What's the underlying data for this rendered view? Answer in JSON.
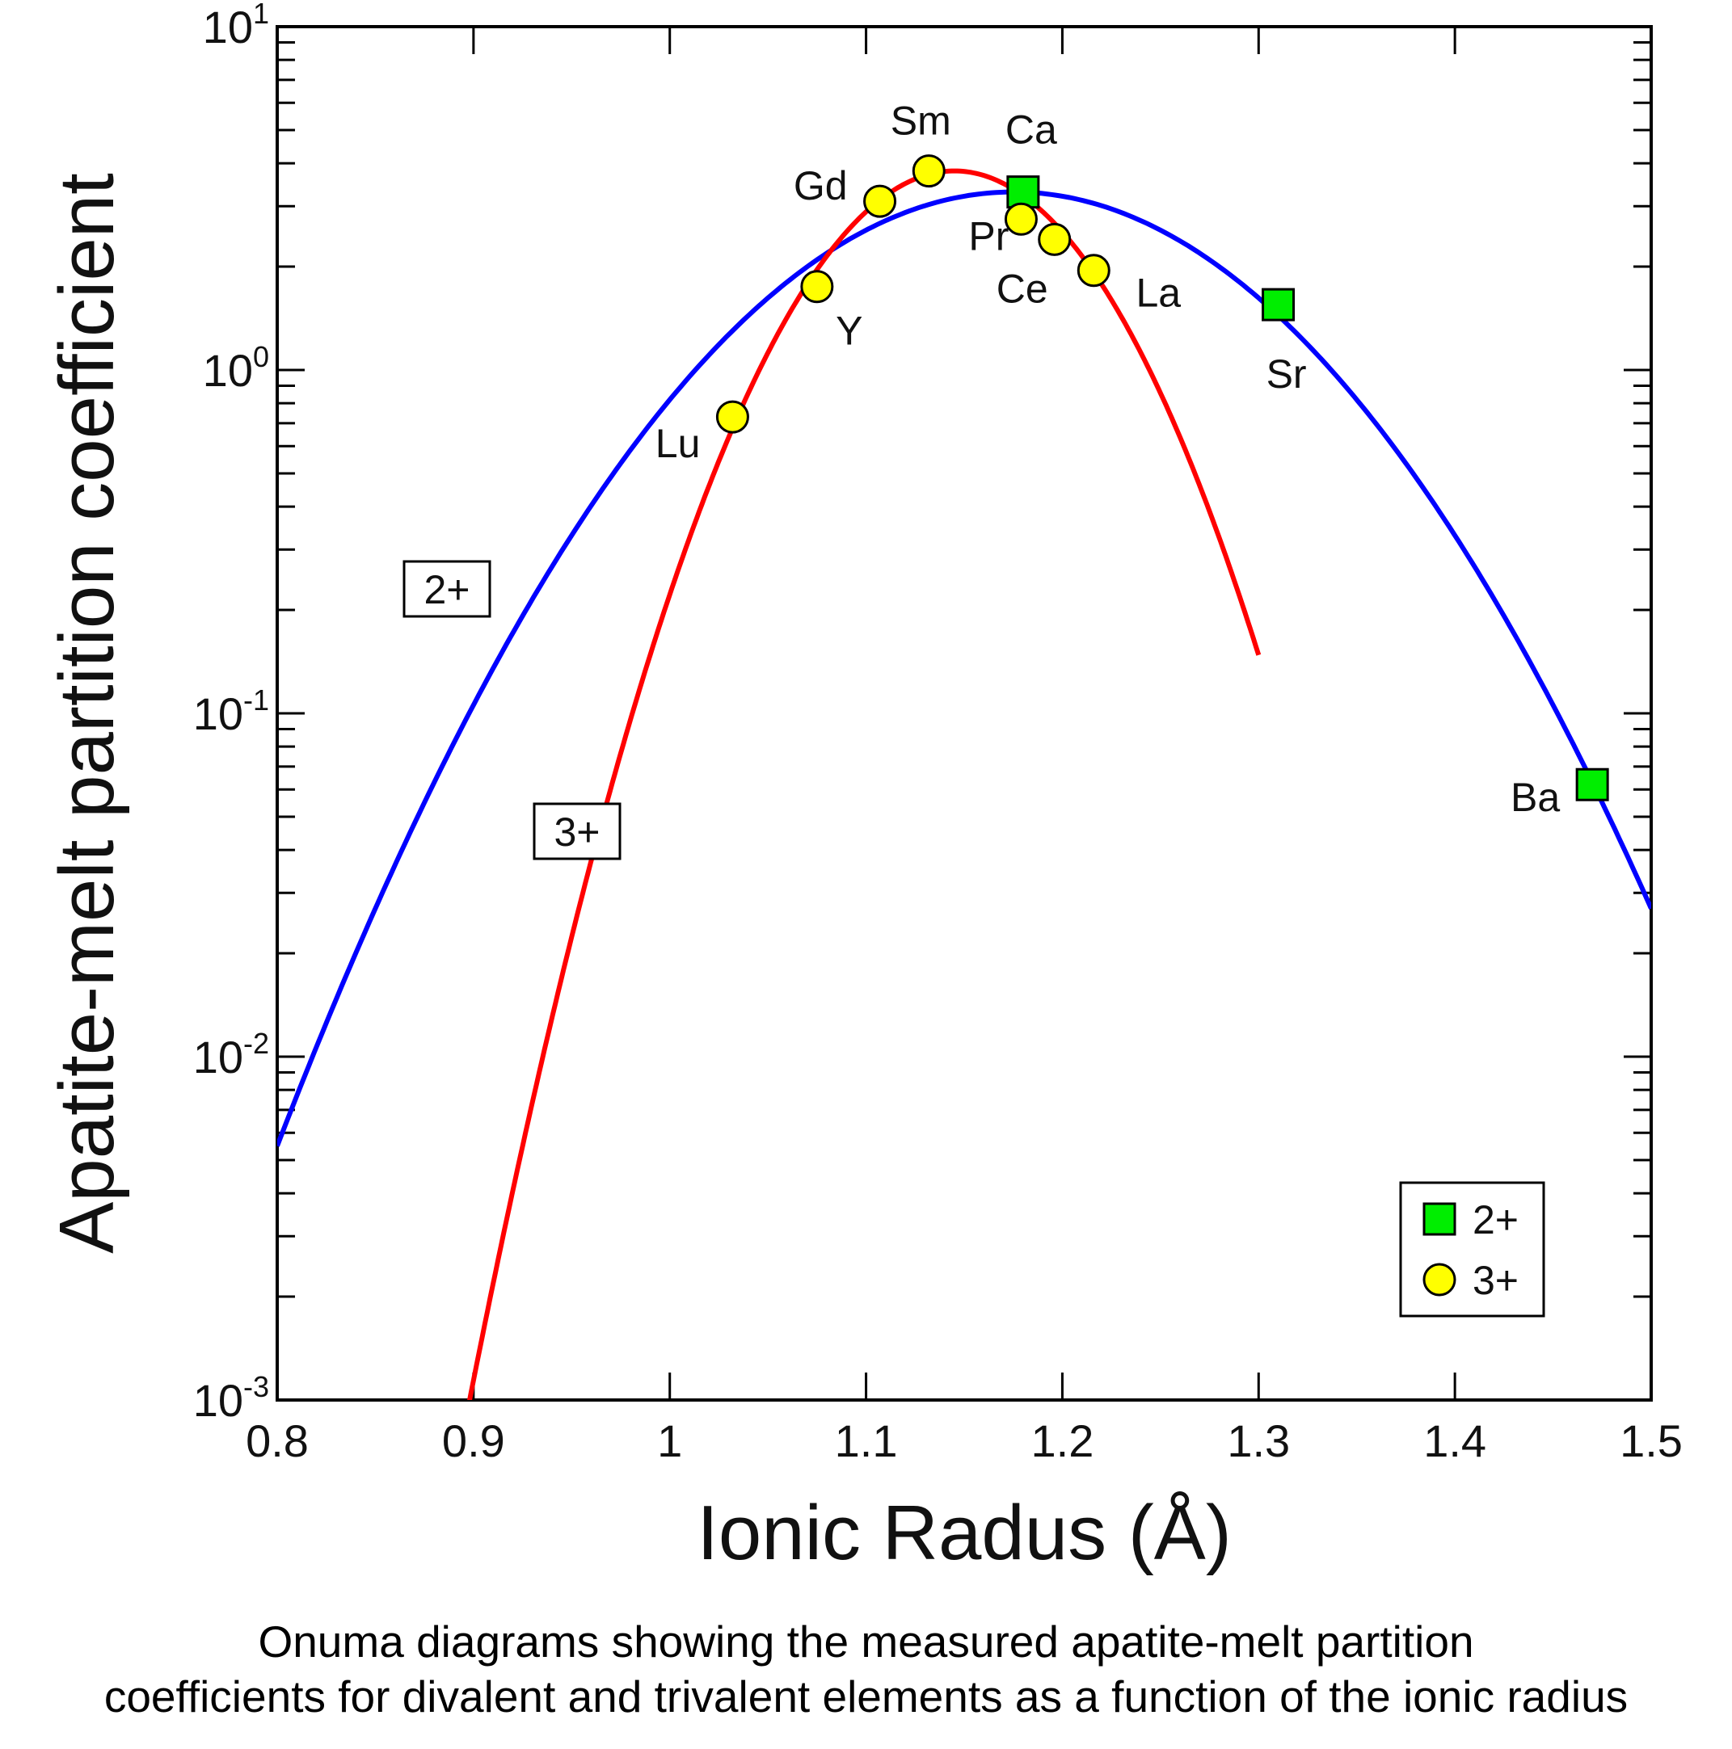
{
  "chart_data": {
    "type": "scatter",
    "title": "",
    "xlabel": "Ionic Radus (Å)",
    "ylabel": "Apatite-melt partition coefficient",
    "xlim": [
      0.8,
      1.5
    ],
    "ylim": [
      0.001,
      10
    ],
    "yscale": "log",
    "grid": false,
    "x_ticks": [
      {
        "value": 0.8,
        "label": "0.8"
      },
      {
        "value": 0.9,
        "label": "0.9"
      },
      {
        "value": 1.0,
        "label": "1"
      },
      {
        "value": 1.1,
        "label": "1.1"
      },
      {
        "value": 1.2,
        "label": "1.2"
      },
      {
        "value": 1.3,
        "label": "1.3"
      },
      {
        "value": 1.4,
        "label": "1.4"
      },
      {
        "value": 1.5,
        "label": "1.5"
      }
    ],
    "y_ticks": [
      {
        "value": 10,
        "base": "10",
        "exp": "1"
      },
      {
        "value": 1,
        "base": "10",
        "exp": "0"
      },
      {
        "value": 0.1,
        "base": "10",
        "exp": "-1"
      },
      {
        "value": 0.01,
        "base": "10",
        "exp": "-2"
      },
      {
        "value": 0.001,
        "base": "10",
        "exp": "-3"
      }
    ],
    "series": [
      {
        "name": "2+",
        "marker": "square",
        "color": "#00ee00",
        "curve_color": "#0000ff",
        "points": [
          {
            "label": "Ca",
            "x": 1.18,
            "y": 3.3
          },
          {
            "label": "Sr",
            "x": 1.31,
            "y": 1.55
          },
          {
            "label": "Ba",
            "x": 1.47,
            "y": 0.062
          }
        ],
        "fit": {
          "peak_x": 1.175,
          "peak_y": 3.3
        },
        "curve_label": "2+"
      },
      {
        "name": "3+",
        "marker": "circle",
        "color": "#ffff00",
        "curve_color": "#ff0000",
        "points": [
          {
            "label": "Lu",
            "x": 1.032,
            "y": 0.73
          },
          {
            "label": "Y",
            "x": 1.075,
            "y": 1.75
          },
          {
            "label": "Gd",
            "x": 1.107,
            "y": 3.1
          },
          {
            "label": "Sm",
            "x": 1.132,
            "y": 3.8
          },
          {
            "label": "Pr",
            "x": 1.179,
            "y": 2.75
          },
          {
            "label": "Ce",
            "x": 1.196,
            "y": 2.4
          },
          {
            "label": "La",
            "x": 1.216,
            "y": 1.95
          }
        ],
        "fit": {
          "peak_x": 1.145,
          "peak_y": 3.8
        },
        "curve_label": "3+"
      }
    ],
    "legend": {
      "placement": "bottom-right",
      "entries": [
        {
          "label": "2+",
          "marker": "square",
          "color": "#00ee00"
        },
        {
          "label": "3+",
          "marker": "circle",
          "color": "#ffff00"
        }
      ]
    }
  },
  "caption": {
    "line1": "Onuma diagrams showing the measured apatite-melt partition",
    "line2": "coefficients for divalent and trivalent elements as a function of the ionic radius"
  }
}
